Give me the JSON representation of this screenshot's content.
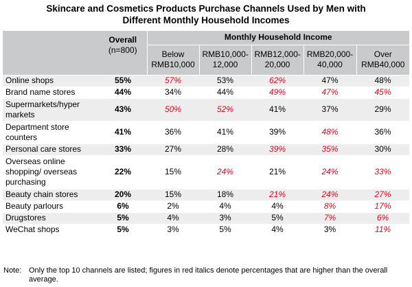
{
  "title": [
    "Skincare and Cosmetics Products Purchase Channels Used by Men with",
    "Different Monthly Household Incomes"
  ],
  "header": {
    "overall": "Overall",
    "overall_n": "(n=800)",
    "group": "Monthly Household Income",
    "columns": [
      [
        "Below",
        "RMB10,000"
      ],
      [
        "RMB10,000-",
        "12,000"
      ],
      [
        "RMB12,000-",
        "20,000"
      ],
      [
        "RMB20,000-",
        "40,000"
      ],
      [
        "Over",
        "RMB40,000"
      ]
    ]
  },
  "rows": [
    {
      "label": [
        "Online shops"
      ],
      "overall": "55%",
      "values": [
        "57%",
        "53%",
        "62%",
        "47%",
        "48%"
      ],
      "highlight": [
        true,
        false,
        true,
        false,
        false
      ]
    },
    {
      "label": [
        "Brand name stores"
      ],
      "overall": "44%",
      "values": [
        "34%",
        "44%",
        "49%",
        "47%",
        "45%"
      ],
      "highlight": [
        false,
        false,
        true,
        true,
        true
      ]
    },
    {
      "label": [
        "Supermarkets/hyper",
        "markets"
      ],
      "overall": "43%",
      "values": [
        "50%",
        "52%",
        "41%",
        "37%",
        "29%"
      ],
      "highlight": [
        true,
        true,
        false,
        false,
        false
      ]
    },
    {
      "label": [
        "Department store",
        "counters"
      ],
      "overall": "41%",
      "values": [
        "36%",
        "41%",
        "39%",
        "48%",
        "36%"
      ],
      "highlight": [
        false,
        false,
        false,
        true,
        false
      ]
    },
    {
      "label": [
        "Personal care stores"
      ],
      "overall": "33%",
      "values": [
        "27%",
        "28%",
        "39%",
        "35%",
        "30%"
      ],
      "highlight": [
        false,
        false,
        true,
        true,
        false
      ]
    },
    {
      "label": [
        "Overseas online",
        "shopping/ overseas",
        "purchasing"
      ],
      "overall": "22%",
      "values": [
        "15%",
        "24%",
        "21%",
        "24%",
        "33%"
      ],
      "highlight": [
        false,
        true,
        false,
        true,
        true
      ]
    },
    {
      "label": [
        "Beauty chain stores"
      ],
      "overall": "20%",
      "values": [
        "15%",
        "18%",
        "21%",
        "24%",
        "27%"
      ],
      "highlight": [
        false,
        false,
        true,
        true,
        true
      ]
    },
    {
      "label": [
        "Beauty parlours"
      ],
      "overall": "6%",
      "values": [
        "2%",
        "4%",
        "4%",
        "8%",
        "17%"
      ],
      "highlight": [
        false,
        false,
        false,
        true,
        true
      ]
    },
    {
      "label": [
        "Drugstores"
      ],
      "overall": "5%",
      "values": [
        "4%",
        "3%",
        "5%",
        "7%",
        "6%"
      ],
      "highlight": [
        false,
        false,
        false,
        true,
        true
      ]
    },
    {
      "label": [
        "WeChat shops"
      ],
      "overall": "5%",
      "values": [
        "3%",
        "5%",
        "4%",
        "3%",
        "11%"
      ],
      "highlight": [
        false,
        false,
        false,
        false,
        true
      ]
    }
  ],
  "note": {
    "prefix": "Note:",
    "line1": "Only the top 10 channels are listed; figures in red italics denote percentages that are higher than the overall",
    "line2": "average."
  },
  "colors": {
    "header_bg": "#c9cacc",
    "row_shade": "#ededed",
    "highlight_text": "#e8001c"
  }
}
